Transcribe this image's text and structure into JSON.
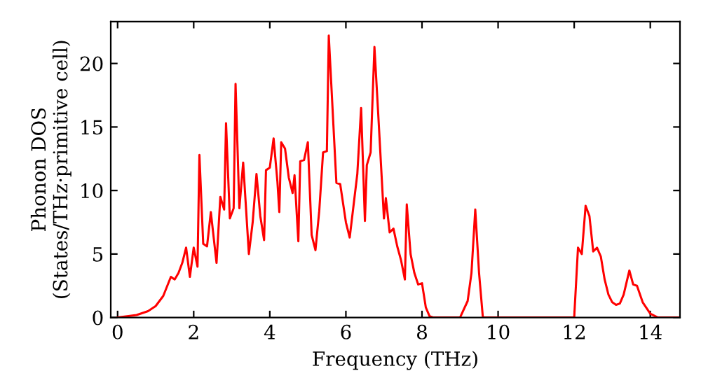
{
  "chart_data": {
    "type": "line",
    "xlabel": "Frequency (THz)",
    "ylabel": "Phonon DOS\n(States/THz·primitive cell)",
    "xlim": [
      -0.18,
      14.78
    ],
    "ylim": [
      0,
      23.3
    ],
    "xticks": [
      0,
      2,
      4,
      6,
      8,
      10,
      12,
      14
    ],
    "yticks": [
      0,
      5,
      10,
      15,
      20
    ],
    "grid": false,
    "legend": false,
    "marker": "none",
    "line_style": "solid",
    "series": [
      {
        "color": "#ff0000",
        "x": [
          0,
          0.5,
          0.8,
          1.0,
          1.2,
          1.4,
          1.5,
          1.6,
          1.7,
          1.8,
          1.9,
          2.0,
          2.1,
          2.15,
          2.25,
          2.35,
          2.45,
          2.6,
          2.7,
          2.8,
          2.85,
          2.95,
          3.05,
          3.1,
          3.2,
          3.3,
          3.45,
          3.55,
          3.65,
          3.75,
          3.85,
          3.9,
          4.0,
          4.1,
          4.2,
          4.25,
          4.3,
          4.4,
          4.5,
          4.6,
          4.65,
          4.75,
          4.8,
          4.9,
          5.0,
          5.1,
          5.2,
          5.3,
          5.4,
          5.5,
          5.55,
          5.75,
          5.85,
          6.0,
          6.1,
          6.3,
          6.4,
          6.5,
          6.55,
          6.65,
          6.75,
          6.85,
          7.0,
          7.05,
          7.15,
          7.25,
          7.35,
          7.45,
          7.55,
          7.6,
          7.7,
          7.8,
          7.9,
          8.0,
          8.1,
          8.2,
          8.3,
          9.0,
          9.2,
          9.3,
          9.4,
          9.5,
          9.6,
          12.0,
          12.1,
          12.2,
          12.3,
          12.4,
          12.5,
          12.6,
          12.7,
          12.8,
          12.9,
          13.0,
          13.1,
          13.2,
          13.3,
          13.45,
          13.55,
          13.65,
          13.8,
          14.0,
          14.2,
          14.78
        ],
        "values": [
          0,
          0.2,
          0.5,
          0.9,
          1.7,
          3.2,
          3.0,
          3.5,
          4.3,
          5.5,
          3.2,
          5.5,
          4.0,
          12.8,
          5.8,
          5.6,
          8.3,
          4.3,
          9.5,
          8.5,
          15.3,
          7.8,
          8.6,
          18.4,
          8.6,
          12.2,
          5.0,
          7.5,
          11.3,
          8.0,
          6.1,
          11.6,
          11.8,
          14.1,
          10.7,
          8.3,
          13.8,
          13.3,
          11.0,
          9.8,
          11.2,
          6.0,
          12.3,
          12.4,
          13.8,
          6.5,
          5.3,
          8.4,
          13.0,
          13.1,
          22.2,
          10.6,
          10.5,
          7.5,
          6.3,
          11.3,
          16.5,
          7.6,
          12.0,
          13.0,
          21.3,
          16.0,
          7.8,
          9.4,
          6.7,
          7.0,
          5.6,
          4.5,
          3.0,
          8.9,
          5.0,
          3.5,
          2.6,
          2.7,
          0.8,
          0.1,
          0,
          0,
          1.3,
          3.5,
          8.5,
          3.5,
          0,
          0,
          5.5,
          5.0,
          8.8,
          8.0,
          5.2,
          5.5,
          4.8,
          3.0,
          1.8,
          1.2,
          1.0,
          1.1,
          1.8,
          3.7,
          2.6,
          2.5,
          1.2,
          0.3,
          0,
          0
        ]
      }
    ]
  }
}
